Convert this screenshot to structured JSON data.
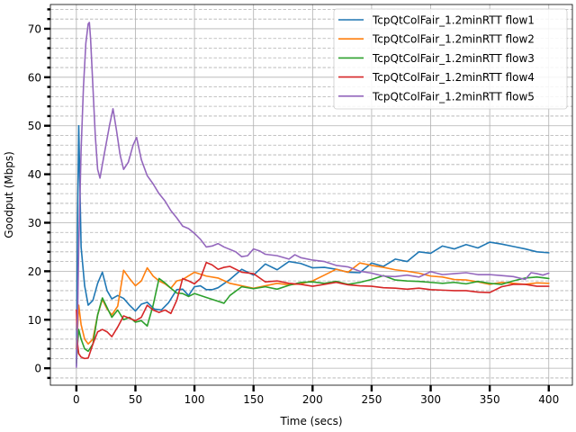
{
  "chart_data": {
    "type": "line",
    "title": "",
    "xlabel": "Time (secs)",
    "ylabel": "Goodput (Mbps)",
    "xlim": [
      -22,
      420
    ],
    "ylim": [
      -3.5,
      75
    ],
    "xticks": [
      0,
      50,
      100,
      150,
      200,
      250,
      300,
      350,
      400
    ],
    "yticks": [
      0,
      10,
      20,
      30,
      40,
      50,
      60,
      70
    ],
    "grid": "major solid, minor dashed horizontal",
    "legend_position": "top-right",
    "series": [
      {
        "name": "TcpQtColFair_1.2minRTT flow1",
        "color": "#1f77b4",
        "points": [
          [
            0,
            0.5
          ],
          [
            1,
            30
          ],
          [
            2,
            50
          ],
          [
            4,
            25
          ],
          [
            7,
            17
          ],
          [
            10,
            13
          ],
          [
            14,
            14
          ],
          [
            18,
            17.5
          ],
          [
            22,
            19.8
          ],
          [
            26,
            16
          ],
          [
            30,
            14.3
          ],
          [
            35,
            15
          ],
          [
            40,
            14.4
          ],
          [
            45,
            13
          ],
          [
            50,
            11.8
          ],
          [
            55,
            13.2
          ],
          [
            60,
            13.6
          ],
          [
            66,
            12.2
          ],
          [
            72,
            12
          ],
          [
            78,
            13.5
          ],
          [
            85,
            16.2
          ],
          [
            90,
            16.3
          ],
          [
            95,
            15
          ],
          [
            100,
            16.8
          ],
          [
            105,
            17
          ],
          [
            110,
            16.2
          ],
          [
            115,
            16.2
          ],
          [
            120,
            16.6
          ],
          [
            130,
            18.3
          ],
          [
            140,
            20.4
          ],
          [
            150,
            19.2
          ],
          [
            160,
            21.5
          ],
          [
            170,
            20.3
          ],
          [
            180,
            22
          ],
          [
            190,
            21.6
          ],
          [
            200,
            20.7
          ],
          [
            210,
            20.8
          ],
          [
            220,
            20.4
          ],
          [
            230,
            19.8
          ],
          [
            240,
            19.7
          ],
          [
            250,
            21.7
          ],
          [
            260,
            21
          ],
          [
            270,
            22.5
          ],
          [
            280,
            22
          ],
          [
            290,
            24
          ],
          [
            300,
            23.7
          ],
          [
            310,
            25.2
          ],
          [
            320,
            24.6
          ],
          [
            330,
            25.5
          ],
          [
            340,
            24.8
          ],
          [
            350,
            26
          ],
          [
            360,
            25.6
          ],
          [
            370,
            25.1
          ],
          [
            380,
            24.6
          ],
          [
            390,
            24
          ],
          [
            400,
            23.8
          ]
        ]
      },
      {
        "name": "TcpQtColFair_1.2minRTT flow2",
        "color": "#ff7f0e",
        "points": [
          [
            0,
            4
          ],
          [
            1,
            8
          ],
          [
            2,
            13
          ],
          [
            4,
            9
          ],
          [
            7,
            6
          ],
          [
            10,
            5
          ],
          [
            14,
            6
          ],
          [
            18,
            11
          ],
          [
            22,
            14.2
          ],
          [
            26,
            12.2
          ],
          [
            30,
            11
          ],
          [
            35,
            12.8
          ],
          [
            40,
            20.2
          ],
          [
            45,
            18.5
          ],
          [
            50,
            17
          ],
          [
            55,
            18
          ],
          [
            60,
            20.7
          ],
          [
            65,
            19
          ],
          [
            70,
            18
          ],
          [
            75,
            17.4
          ],
          [
            80,
            16.5
          ],
          [
            85,
            18
          ],
          [
            90,
            18.3
          ],
          [
            100,
            19.8
          ],
          [
            110,
            19
          ],
          [
            120,
            18.6
          ],
          [
            130,
            17.5
          ],
          [
            140,
            17
          ],
          [
            150,
            16.5
          ],
          [
            160,
            17
          ],
          [
            170,
            17.5
          ],
          [
            180,
            17.2
          ],
          [
            190,
            17.4
          ],
          [
            200,
            18
          ],
          [
            210,
            19.2
          ],
          [
            220,
            20.4
          ],
          [
            230,
            19.8
          ],
          [
            240,
            21.7
          ],
          [
            250,
            21.2
          ],
          [
            260,
            20.8
          ],
          [
            270,
            20.3
          ],
          [
            280,
            20
          ],
          [
            290,
            19.6
          ],
          [
            300,
            19
          ],
          [
            310,
            18.8
          ],
          [
            320,
            18.3
          ],
          [
            330,
            18.2
          ],
          [
            340,
            17.8
          ],
          [
            350,
            17.3
          ],
          [
            360,
            17.7
          ],
          [
            370,
            17.5
          ],
          [
            380,
            17.3
          ],
          [
            390,
            17.6
          ],
          [
            400,
            17.5
          ]
        ]
      },
      {
        "name": "TcpQtColFair_1.2minRTT flow3",
        "color": "#2ca02c",
        "points": [
          [
            0,
            1
          ],
          [
            1,
            5
          ],
          [
            2,
            8
          ],
          [
            4,
            6
          ],
          [
            7,
            4
          ],
          [
            10,
            3.5
          ],
          [
            14,
            5
          ],
          [
            18,
            11
          ],
          [
            22,
            14.5
          ],
          [
            26,
            12.5
          ],
          [
            30,
            10.5
          ],
          [
            35,
            12
          ],
          [
            40,
            10
          ],
          [
            45,
            10.5
          ],
          [
            50,
            9.5
          ],
          [
            55,
            9.8
          ],
          [
            60,
            8.7
          ],
          [
            65,
            13
          ],
          [
            70,
            18.5
          ],
          [
            75,
            17.6
          ],
          [
            80,
            16.5
          ],
          [
            85,
            15.5
          ],
          [
            90,
            15.4
          ],
          [
            95,
            14.8
          ],
          [
            100,
            15.4
          ],
          [
            110,
            14.6
          ],
          [
            120,
            13.8
          ],
          [
            125,
            13.4
          ],
          [
            130,
            15
          ],
          [
            140,
            16.8
          ],
          [
            150,
            16.4
          ],
          [
            160,
            16.8
          ],
          [
            170,
            16.3
          ],
          [
            180,
            17.1
          ],
          [
            190,
            17.7
          ],
          [
            200,
            17.8
          ],
          [
            210,
            17.5
          ],
          [
            220,
            17.9
          ],
          [
            230,
            17.3
          ],
          [
            240,
            17.7
          ],
          [
            250,
            18.3
          ],
          [
            260,
            19.1
          ],
          [
            270,
            18.2
          ],
          [
            280,
            18
          ],
          [
            290,
            17.9
          ],
          [
            300,
            17.7
          ],
          [
            310,
            17.5
          ],
          [
            320,
            17.7
          ],
          [
            330,
            17.4
          ],
          [
            340,
            17.9
          ],
          [
            350,
            17.5
          ],
          [
            360,
            17.3
          ],
          [
            370,
            18
          ],
          [
            380,
            18.6
          ],
          [
            390,
            18.8
          ],
          [
            400,
            18.5
          ]
        ]
      },
      {
        "name": "TcpQtColFair_1.2minRTT flow4",
        "color": "#d62728",
        "points": [
          [
            0,
            12
          ],
          [
            1,
            5
          ],
          [
            2,
            3
          ],
          [
            4,
            2.3
          ],
          [
            7,
            2
          ],
          [
            10,
            2.1
          ],
          [
            14,
            5
          ],
          [
            18,
            7.5
          ],
          [
            22,
            8
          ],
          [
            26,
            7.5
          ],
          [
            30,
            6.5
          ],
          [
            35,
            8.5
          ],
          [
            40,
            10.8
          ],
          [
            45,
            10.3
          ],
          [
            50,
            9.8
          ],
          [
            55,
            10.5
          ],
          [
            60,
            13
          ],
          [
            65,
            12
          ],
          [
            70,
            11.5
          ],
          [
            75,
            12
          ],
          [
            80,
            11.3
          ],
          [
            85,
            14
          ],
          [
            90,
            18.5
          ],
          [
            95,
            18
          ],
          [
            100,
            17.4
          ],
          [
            105,
            18.5
          ],
          [
            110,
            21.8
          ],
          [
            115,
            21.3
          ],
          [
            120,
            20.4
          ],
          [
            125,
            20.8
          ],
          [
            130,
            21
          ],
          [
            140,
            19.8
          ],
          [
            150,
            19.5
          ],
          [
            160,
            17.8
          ],
          [
            170,
            18
          ],
          [
            180,
            17.5
          ],
          [
            190,
            17.3
          ],
          [
            200,
            16.9
          ],
          [
            210,
            17.3
          ],
          [
            220,
            17.7
          ],
          [
            230,
            17.2
          ],
          [
            240,
            17
          ],
          [
            250,
            16.9
          ],
          [
            260,
            16.6
          ],
          [
            270,
            16.5
          ],
          [
            280,
            16.3
          ],
          [
            290,
            16.5
          ],
          [
            300,
            16.2
          ],
          [
            310,
            16.1
          ],
          [
            320,
            16
          ],
          [
            330,
            16
          ],
          [
            340,
            15.7
          ],
          [
            350,
            15.6
          ],
          [
            360,
            16.8
          ],
          [
            370,
            17.3
          ],
          [
            380,
            17.3
          ],
          [
            390,
            16.9
          ],
          [
            400,
            16.9
          ]
        ]
      },
      {
        "name": "TcpQtColFair_1.2minRTT flow5",
        "color": "#9467bd",
        "points": [
          [
            0,
            0.2
          ],
          [
            1,
            10
          ],
          [
            2,
            25
          ],
          [
            4,
            45
          ],
          [
            6,
            58
          ],
          [
            8,
            67
          ],
          [
            10,
            71
          ],
          [
            11,
            71.3
          ],
          [
            12,
            68
          ],
          [
            14,
            58
          ],
          [
            16,
            48
          ],
          [
            18,
            41
          ],
          [
            20,
            39.2
          ],
          [
            22,
            42
          ],
          [
            25,
            46
          ],
          [
            28,
            50
          ],
          [
            31,
            53.5
          ],
          [
            34,
            49
          ],
          [
            37,
            44
          ],
          [
            40,
            41
          ],
          [
            44,
            42.5
          ],
          [
            48,
            46
          ],
          [
            51,
            47.6
          ],
          [
            55,
            43
          ],
          [
            60,
            39.7
          ],
          [
            65,
            38
          ],
          [
            70,
            36
          ],
          [
            75,
            34.5
          ],
          [
            80,
            32.5
          ],
          [
            85,
            31
          ],
          [
            90,
            29.3
          ],
          [
            95,
            28.8
          ],
          [
            100,
            27.8
          ],
          [
            105,
            26.6
          ],
          [
            110,
            25
          ],
          [
            115,
            25.2
          ],
          [
            120,
            25.7
          ],
          [
            125,
            25
          ],
          [
            130,
            24.5
          ],
          [
            135,
            24
          ],
          [
            140,
            23
          ],
          [
            145,
            23.2
          ],
          [
            150,
            24.6
          ],
          [
            155,
            24.2
          ],
          [
            160,
            23.5
          ],
          [
            170,
            23.2
          ],
          [
            180,
            22.5
          ],
          [
            185,
            23.4
          ],
          [
            190,
            22.8
          ],
          [
            200,
            22.3
          ],
          [
            210,
            22
          ],
          [
            220,
            21.2
          ],
          [
            230,
            20.9
          ],
          [
            240,
            20
          ],
          [
            250,
            19.6
          ],
          [
            260,
            19
          ],
          [
            270,
            18.9
          ],
          [
            280,
            19.2
          ],
          [
            290,
            18.8
          ],
          [
            300,
            19.9
          ],
          [
            310,
            19.3
          ],
          [
            320,
            19.5
          ],
          [
            330,
            19.7
          ],
          [
            340,
            19.3
          ],
          [
            350,
            19.3
          ],
          [
            360,
            19.1
          ],
          [
            370,
            18.9
          ],
          [
            380,
            18.3
          ],
          [
            385,
            19.7
          ],
          [
            390,
            19.5
          ],
          [
            395,
            19.2
          ],
          [
            400,
            19.6
          ]
        ]
      }
    ]
  }
}
